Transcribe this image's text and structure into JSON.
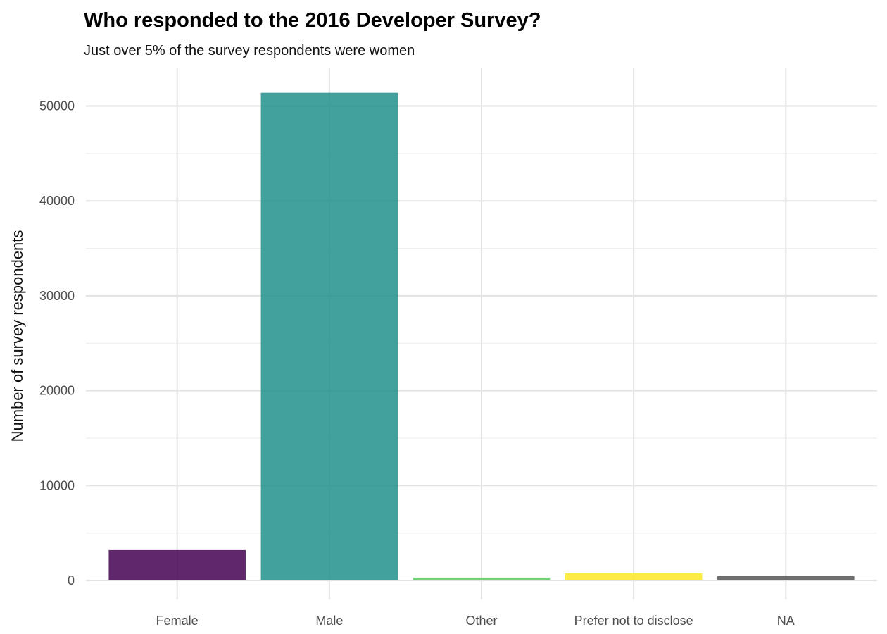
{
  "chart_data": {
    "type": "bar",
    "title": "Who responded to the 2016 Developer Survey?",
    "subtitle": "Just over 5% of the survey respondents were women",
    "xlabel": "",
    "ylabel": "Number of survey respondents",
    "categories": [
      "Female",
      "Male",
      "Other",
      "Prefer not to disclose",
      "NA"
    ],
    "values": [
      3200,
      51400,
      300,
      750,
      450
    ],
    "colors": [
      "#440154",
      "#21908C",
      "#5DC863",
      "#FDE725",
      "#555555"
    ],
    "bar_opacity": 0.85,
    "ylim": [
      0,
      53900
    ],
    "yticks": [
      0,
      10000,
      20000,
      30000,
      40000,
      50000
    ],
    "ytick_labels": [
      "0",
      "10000",
      "20000",
      "30000",
      "40000",
      "50000"
    ],
    "grid": true,
    "legend": "none"
  }
}
